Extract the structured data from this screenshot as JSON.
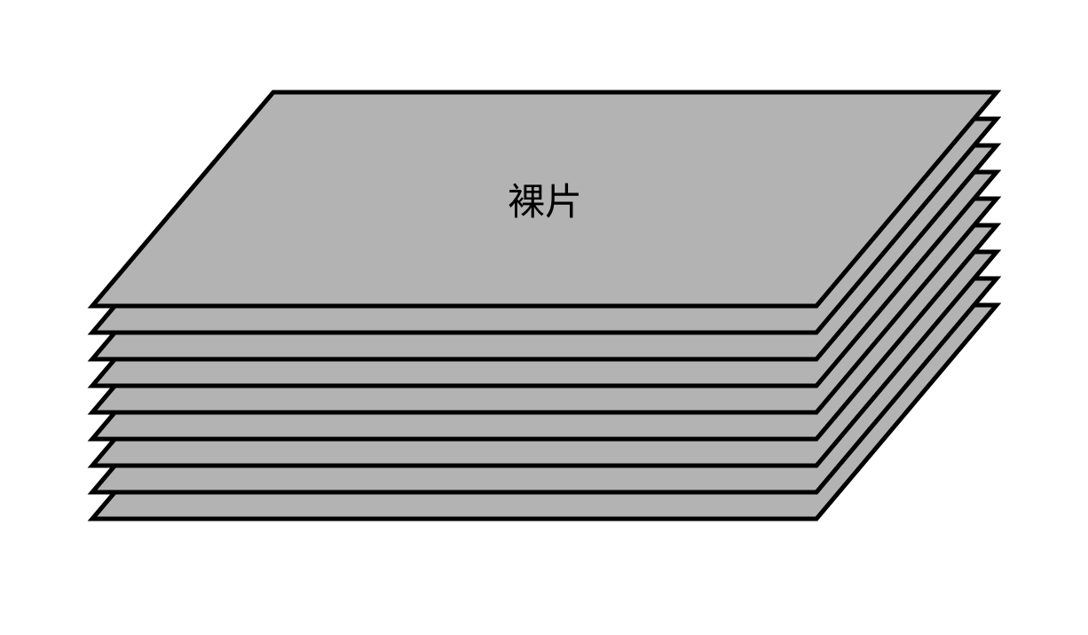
{
  "diagram": {
    "label": "裸片",
    "layer_count": 9,
    "colors": {
      "fill": "#b3b3b3",
      "stroke": "#000000",
      "background": "#ffffff",
      "text": "#000000"
    }
  }
}
